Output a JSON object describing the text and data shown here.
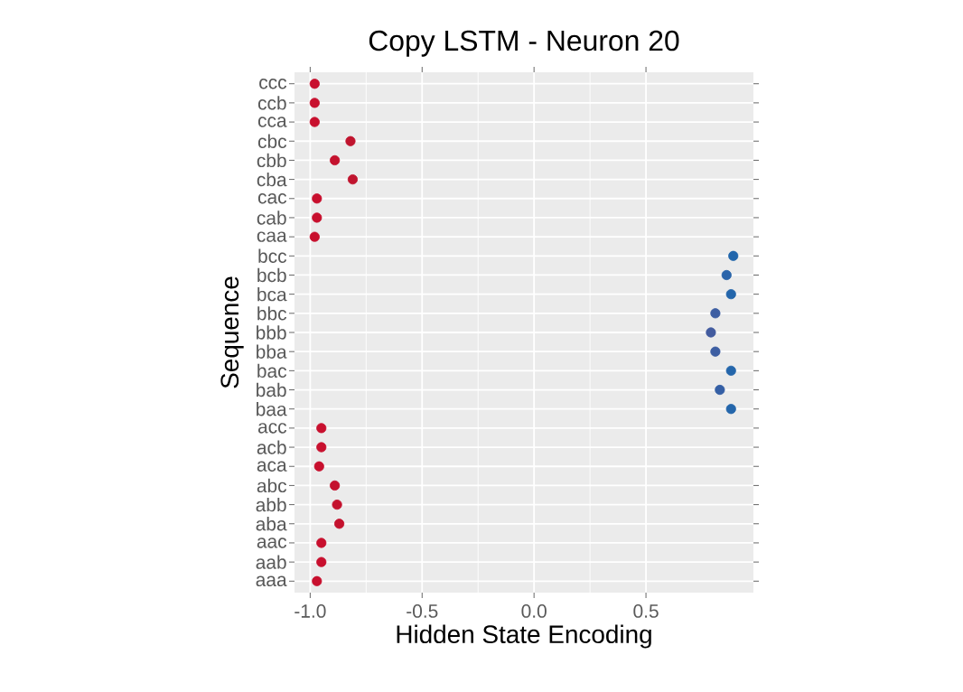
{
  "chart_data": {
    "type": "scatter",
    "orientation": "horizontal",
    "title": "Copy LSTM - Neuron 20",
    "xlabel": "Hidden State Encoding",
    "ylabel": "Sequence",
    "categories": [
      "ccc",
      "ccb",
      "cca",
      "cbc",
      "cbb",
      "cba",
      "cac",
      "cab",
      "caa",
      "bcc",
      "bcb",
      "bca",
      "bbc",
      "bbb",
      "bba",
      "bac",
      "bab",
      "baa",
      "acc",
      "acb",
      "aca",
      "abc",
      "abb",
      "aba",
      "aac",
      "aab",
      "aaa"
    ],
    "values": [
      -0.98,
      -0.98,
      -0.98,
      -0.82,
      -0.89,
      -0.81,
      -0.97,
      -0.97,
      -0.98,
      0.89,
      0.86,
      0.88,
      0.81,
      0.79,
      0.81,
      0.88,
      0.83,
      0.88,
      -0.95,
      -0.95,
      -0.96,
      -0.89,
      -0.88,
      -0.87,
      -0.95,
      -0.95,
      -0.97
    ],
    "colors": [
      "#c8102e",
      "#c8102e",
      "#c8102e",
      "#c0142e",
      "#c4122e",
      "#c0142e",
      "#c8102e",
      "#c8102e",
      "#c8102e",
      "#2166ac",
      "#2a64aa",
      "#2466ab",
      "#3d5ea2",
      "#435c9f",
      "#3d5ea2",
      "#2466ab",
      "#355fa5",
      "#2466ab",
      "#c8102e",
      "#c8102e",
      "#c8102e",
      "#c4122e",
      "#c4122e",
      "#c4122e",
      "#c8102e",
      "#c8102e",
      "#c8102e"
    ],
    "xlim": [
      -1.07,
      0.98
    ],
    "xticks": [
      {
        "value": -1,
        "label": "-1.0"
      },
      {
        "value": -0.5,
        "label": "-0.5"
      },
      {
        "value": 0,
        "label": "0.0"
      },
      {
        "value": 0.5,
        "label": "0.5"
      }
    ],
    "grid": true
  }
}
